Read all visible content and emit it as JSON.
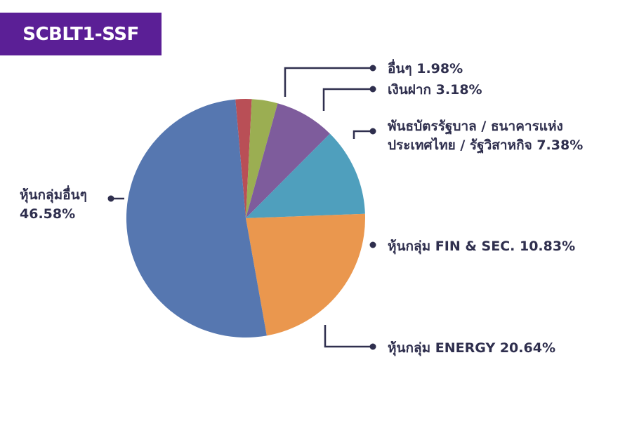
{
  "badge": {
    "text": "SCBLT1-SSF",
    "color": "#5b1f96"
  },
  "chart_data": {
    "type": "pie",
    "slices": [
      {
        "label_lines": [
          "อื่นๆ 1.98%"
        ],
        "value": 1.98,
        "color": "#b94f56"
      },
      {
        "label_lines": [
          "เงินฝาก 3.18%"
        ],
        "value": 3.18,
        "color": "#9bae52"
      },
      {
        "label_lines": [
          "พันธบัตรรัฐบาล / ธนาคารแห่ง",
          "ประเทศไทย / รัฐวิสาหกิจ 7.38%"
        ],
        "value": 7.38,
        "color": "#7e5c9c"
      },
      {
        "label_lines": [
          "หุ้นกลุ่ม FIN & SEC. 10.83%"
        ],
        "value": 10.83,
        "color": "#4f9fbd"
      },
      {
        "label_lines": [
          "หุ้นกลุ่ม ENERGY 20.64%"
        ],
        "value": 20.64,
        "color": "#ea974e"
      },
      {
        "label_lines": [
          "หุ้นกลุ่มอื่นๆ",
          "46.58%"
        ],
        "value": 46.58,
        "color": "#5677b0"
      }
    ]
  }
}
